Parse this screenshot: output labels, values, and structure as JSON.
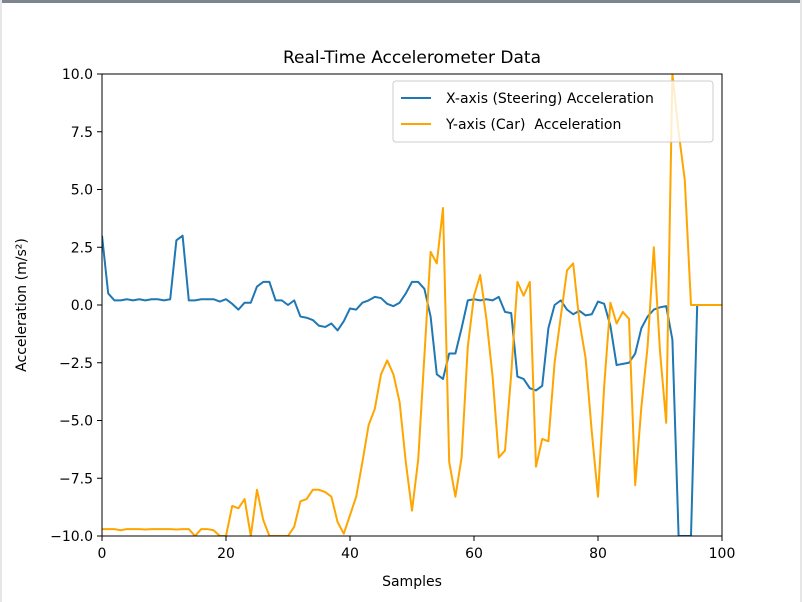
{
  "chart_data": {
    "type": "line",
    "title": "Real-Time Accelerometer Data",
    "xlabel": "Samples",
    "ylabel": "Acceleration (m/s²)",
    "xlim": [
      0,
      100
    ],
    "ylim": [
      -10,
      10
    ],
    "x_ticks": [
      0,
      20,
      40,
      60,
      80,
      100
    ],
    "y_ticks": [
      10.0,
      7.5,
      5.0,
      2.5,
      0.0,
      -2.5,
      -5.0,
      -7.5,
      -10.0
    ],
    "x_tick_labels": [
      "0",
      "20",
      "40",
      "60",
      "80",
      "100"
    ],
    "y_tick_labels": [
      "10.0",
      "7.5",
      "5.0",
      "2.5",
      "0.0",
      "−2.5",
      "−5.0",
      "−7.5",
      "−10.0"
    ],
    "grid": false,
    "legend_position": "top-right",
    "series": [
      {
        "name": "X-axis (Steering) Acceleration",
        "color": "#1f77b4",
        "x": [
          0,
          1,
          2,
          3,
          4,
          5,
          6,
          7,
          8,
          9,
          10,
          11,
          12,
          13,
          14,
          15,
          16,
          17,
          18,
          19,
          20,
          21,
          22,
          23,
          24,
          25,
          26,
          27,
          28,
          29,
          30,
          31,
          32,
          33,
          34,
          35,
          36,
          37,
          38,
          39,
          40,
          41,
          42,
          43,
          44,
          45,
          46,
          47,
          48,
          49,
          50,
          51,
          52,
          53,
          54,
          55,
          56,
          57,
          58,
          59,
          60,
          61,
          62,
          63,
          64,
          65,
          66,
          67,
          68,
          69,
          70,
          71,
          72,
          73,
          74,
          75,
          76,
          77,
          78,
          79,
          80,
          81,
          82,
          83,
          84,
          85,
          86,
          87,
          88,
          89,
          90,
          91,
          92,
          93,
          94,
          95,
          96,
          97,
          98,
          99,
          100
        ],
        "y": [
          3.0,
          0.5,
          0.2,
          0.2,
          0.25,
          0.2,
          0.25,
          0.2,
          0.25,
          0.25,
          0.2,
          0.25,
          2.8,
          3.0,
          0.2,
          0.2,
          0.25,
          0.25,
          0.25,
          0.15,
          0.25,
          0.05,
          -0.2,
          0.1,
          0.1,
          0.8,
          1.0,
          1.0,
          0.2,
          0.2,
          0.0,
          0.2,
          -0.5,
          -0.55,
          -0.65,
          -0.9,
          -0.95,
          -0.8,
          -1.1,
          -0.7,
          -0.15,
          -0.2,
          0.1,
          0.2,
          0.35,
          0.3,
          0.05,
          -0.05,
          0.1,
          0.5,
          1.0,
          1.0,
          0.7,
          -0.5,
          -3.0,
          -3.2,
          -2.1,
          -2.1,
          -1.0,
          0.2,
          0.25,
          0.2,
          0.25,
          0.2,
          0.35,
          -0.3,
          -0.35,
          -3.1,
          -3.2,
          -3.6,
          -3.7,
          -3.5,
          -1.0,
          0.0,
          0.2,
          -0.2,
          -0.4,
          -0.25,
          -0.45,
          -0.4,
          0.15,
          0.05,
          -0.9,
          -2.6,
          -2.55,
          -2.5,
          -2.1,
          -1.0,
          -0.5,
          -0.2,
          -0.1,
          -0.05,
          -1.5,
          -10.0,
          -10.0,
          -10.0,
          0.0,
          0.0,
          0.0,
          0.0,
          0.0
        ]
      },
      {
        "name": "Y-axis (Car)  Acceleration",
        "color": "#ffa500",
        "x": [
          0,
          1,
          2,
          3,
          4,
          5,
          6,
          7,
          8,
          9,
          10,
          11,
          12,
          13,
          14,
          15,
          16,
          17,
          18,
          19,
          20,
          21,
          22,
          23,
          24,
          25,
          26,
          27,
          28,
          29,
          30,
          31,
          32,
          33,
          34,
          35,
          36,
          37,
          38,
          39,
          40,
          41,
          42,
          43,
          44,
          45,
          46,
          47,
          48,
          49,
          50,
          51,
          52,
          53,
          54,
          55,
          56,
          57,
          58,
          59,
          60,
          61,
          62,
          63,
          64,
          65,
          66,
          67,
          68,
          69,
          70,
          71,
          72,
          73,
          74,
          75,
          76,
          77,
          78,
          79,
          80,
          81,
          82,
          83,
          84,
          85,
          86,
          87,
          88,
          89,
          90,
          91,
          92,
          93,
          94,
          95,
          96,
          97,
          98,
          99,
          100
        ],
        "y": [
          -9.7,
          -9.7,
          -9.7,
          -9.75,
          -9.7,
          -9.7,
          -9.7,
          -9.72,
          -9.7,
          -9.7,
          -9.7,
          -9.7,
          -9.72,
          -9.7,
          -9.7,
          -10.0,
          -9.7,
          -9.7,
          -9.75,
          -10.0,
          -10.0,
          -8.7,
          -8.8,
          -8.4,
          -10.0,
          -8.0,
          -9.3,
          -10.0,
          -10.0,
          -10.0,
          -10.0,
          -9.6,
          -8.5,
          -8.4,
          -8.0,
          -8.0,
          -8.1,
          -8.3,
          -9.4,
          -9.9,
          -9.1,
          -8.3,
          -6.8,
          -5.2,
          -4.5,
          -3.0,
          -2.4,
          -3.0,
          -4.2,
          -6.8,
          -8.9,
          -6.7,
          -2.2,
          2.3,
          1.8,
          4.2,
          -6.8,
          -8.3,
          -6.6,
          -1.8,
          0.4,
          1.3,
          -0.6,
          -3.1,
          -6.6,
          -6.3,
          -3.0,
          1.0,
          0.4,
          1.0,
          -7.0,
          -5.8,
          -5.9,
          -2.5,
          -0.5,
          1.5,
          1.8,
          -0.7,
          -2.3,
          -5.5,
          -8.3,
          -3.5,
          0.1,
          -0.8,
          -0.3,
          -0.6,
          -7.8,
          -4.4,
          -1.8,
          2.5,
          -2.0,
          -5.1,
          10.0,
          7.5,
          5.4,
          0.0,
          0.0,
          0.0,
          0.0,
          0.0,
          0.0
        ]
      }
    ]
  }
}
